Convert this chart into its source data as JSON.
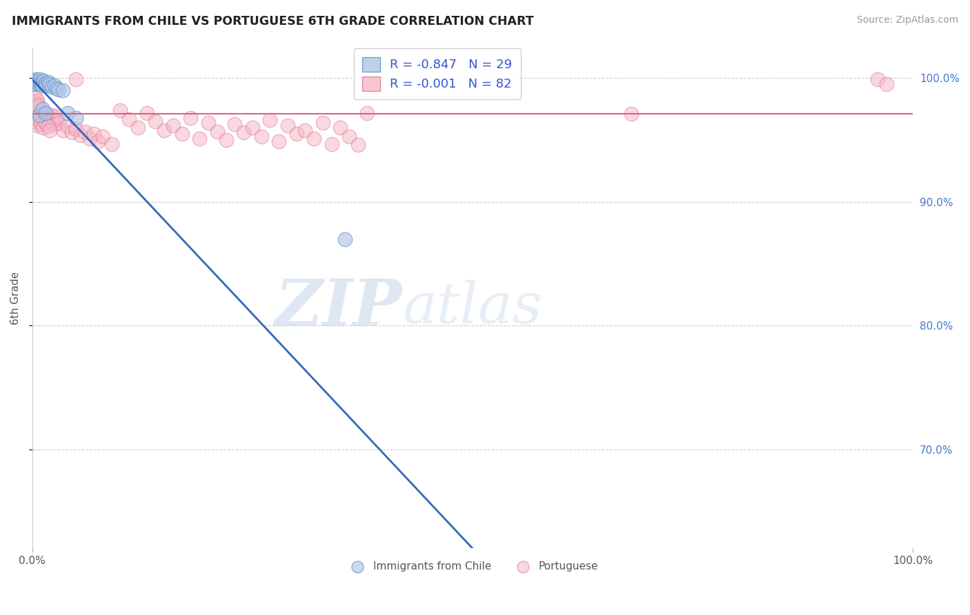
{
  "title": "IMMIGRANTS FROM CHILE VS PORTUGUESE 6TH GRADE CORRELATION CHART",
  "source": "Source: ZipAtlas.com",
  "ylabel": "6th Grade",
  "ytick_vals": [
    0.7,
    0.8,
    0.9,
    1.0
  ],
  "ytick_labels": [
    "70.0%",
    "80.0%",
    "90.0%",
    "100.0%"
  ],
  "xlim": [
    0.0,
    1.0
  ],
  "ylim": [
    0.62,
    1.025
  ],
  "legend_blue_r": "-0.847",
  "legend_blue_n": "29",
  "legend_pink_r": "-0.001",
  "legend_pink_n": "82",
  "legend_label1": "Immigrants from Chile",
  "legend_label2": "Portuguese",
  "blue_fill": "#aec6e8",
  "blue_edge": "#5b8ec4",
  "pink_fill": "#f5b8c8",
  "pink_edge": "#e07090",
  "blue_line_color": "#3366bb",
  "pink_line_color": "#e06080",
  "watermark_zip": "ZIP",
  "watermark_atlas": "atlas",
  "grid_color": "#cccccc",
  "blue_dots": [
    [
      0.001,
      0.995
    ],
    [
      0.002,
      0.998
    ],
    [
      0.003,
      0.997
    ],
    [
      0.004,
      0.999
    ],
    [
      0.005,
      0.996
    ],
    [
      0.006,
      0.998
    ],
    [
      0.007,
      0.995
    ],
    [
      0.008,
      0.997
    ],
    [
      0.009,
      0.999
    ],
    [
      0.01,
      0.996
    ],
    [
      0.011,
      0.994
    ],
    [
      0.012,
      0.997
    ],
    [
      0.013,
      0.998
    ],
    [
      0.014,
      0.995
    ],
    [
      0.015,
      0.996
    ],
    [
      0.016,
      0.994
    ],
    [
      0.018,
      0.997
    ],
    [
      0.02,
      0.995
    ],
    [
      0.022,
      0.993
    ],
    [
      0.025,
      0.994
    ],
    [
      0.028,
      0.992
    ],
    [
      0.03,
      0.991
    ],
    [
      0.035,
      0.99
    ],
    [
      0.04,
      0.972
    ],
    [
      0.05,
      0.968
    ],
    [
      0.008,
      0.97
    ],
    [
      0.012,
      0.975
    ],
    [
      0.015,
      0.972
    ],
    [
      0.355,
      0.87
    ]
  ],
  "pink_dots": [
    [
      0.001,
      0.975
    ],
    [
      0.002,
      0.978
    ],
    [
      0.003,
      0.974
    ],
    [
      0.004,
      0.976
    ],
    [
      0.005,
      0.971
    ],
    [
      0.006,
      0.975
    ],
    [
      0.007,
      0.972
    ],
    [
      0.008,
      0.97
    ],
    [
      0.009,
      0.973
    ],
    [
      0.01,
      0.975
    ],
    [
      0.011,
      0.971
    ],
    [
      0.012,
      0.968
    ],
    [
      0.013,
      0.972
    ],
    [
      0.014,
      0.969
    ],
    [
      0.015,
      0.967
    ],
    [
      0.016,
      0.971
    ],
    [
      0.018,
      0.968
    ],
    [
      0.02,
      0.965
    ],
    [
      0.022,
      0.97
    ],
    [
      0.024,
      0.967
    ],
    [
      0.026,
      0.963
    ],
    [
      0.028,
      0.969
    ],
    [
      0.03,
      0.964
    ],
    [
      0.035,
      0.958
    ],
    [
      0.04,
      0.961
    ],
    [
      0.045,
      0.956
    ],
    [
      0.05,
      0.959
    ],
    [
      0.055,
      0.954
    ],
    [
      0.06,
      0.957
    ],
    [
      0.065,
      0.951
    ],
    [
      0.07,
      0.955
    ],
    [
      0.075,
      0.949
    ],
    [
      0.08,
      0.953
    ],
    [
      0.09,
      0.947
    ],
    [
      0.1,
      0.974
    ],
    [
      0.11,
      0.967
    ],
    [
      0.12,
      0.96
    ],
    [
      0.13,
      0.972
    ],
    [
      0.14,
      0.965
    ],
    [
      0.15,
      0.958
    ],
    [
      0.16,
      0.962
    ],
    [
      0.17,
      0.955
    ],
    [
      0.18,
      0.968
    ],
    [
      0.19,
      0.951
    ],
    [
      0.2,
      0.964
    ],
    [
      0.21,
      0.957
    ],
    [
      0.22,
      0.95
    ],
    [
      0.23,
      0.963
    ],
    [
      0.24,
      0.956
    ],
    [
      0.25,
      0.96
    ],
    [
      0.26,
      0.953
    ],
    [
      0.27,
      0.966
    ],
    [
      0.28,
      0.949
    ],
    [
      0.29,
      0.962
    ],
    [
      0.3,
      0.955
    ],
    [
      0.31,
      0.958
    ],
    [
      0.32,
      0.951
    ],
    [
      0.33,
      0.964
    ],
    [
      0.34,
      0.947
    ],
    [
      0.35,
      0.96
    ],
    [
      0.36,
      0.953
    ],
    [
      0.37,
      0.946
    ],
    [
      0.002,
      0.981
    ],
    [
      0.003,
      0.977
    ],
    [
      0.004,
      0.984
    ],
    [
      0.005,
      0.979
    ],
    [
      0.006,
      0.982
    ],
    [
      0.007,
      0.978
    ],
    [
      0.05,
      0.999
    ],
    [
      0.38,
      0.972
    ],
    [
      0.68,
      0.971
    ],
    [
      0.96,
      0.999
    ],
    [
      0.97,
      0.995
    ],
    [
      0.002,
      0.965
    ],
    [
      0.004,
      0.968
    ],
    [
      0.006,
      0.962
    ],
    [
      0.008,
      0.966
    ],
    [
      0.01,
      0.963
    ],
    [
      0.012,
      0.96
    ],
    [
      0.015,
      0.964
    ],
    [
      0.018,
      0.961
    ],
    [
      0.02,
      0.958
    ]
  ],
  "blue_line": [
    [
      0.0,
      0.999
    ],
    [
      0.5,
      0.62
    ]
  ],
  "blue_line_dash": [
    [
      0.5,
      0.62
    ],
    [
      0.62,
      0.54
    ]
  ],
  "pink_line_y": 0.971
}
